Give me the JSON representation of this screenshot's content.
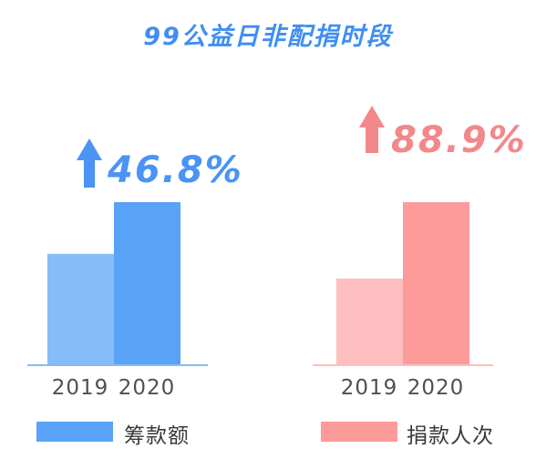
{
  "title": "99公益日非配捐时段",
  "colors": {
    "title": "#3f8ef5",
    "blue_2019": "#86bcf9",
    "blue_2020": "#58a2f8",
    "red_2019": "#fdbfbf",
    "red_2020": "#fd9a9a"
  },
  "icons": {
    "blue_arrow": "up-arrow-icon",
    "red_arrow": "up-arrow-icon"
  },
  "chart_data": [
    {
      "type": "bar",
      "categories": [
        "2019",
        "2020"
      ],
      "values": [
        68.1,
        100
      ],
      "growth_label": "46.8%",
      "legend": "筹款额",
      "colors": [
        "#86bcf9",
        "#58a2f8"
      ]
    },
    {
      "type": "bar",
      "categories": [
        "2019",
        "2020"
      ],
      "values": [
        52.9,
        100
      ],
      "growth_label": "88.9%",
      "legend": "捐款人次",
      "colors": [
        "#fdbfbf",
        "#fd9a9a"
      ]
    }
  ]
}
